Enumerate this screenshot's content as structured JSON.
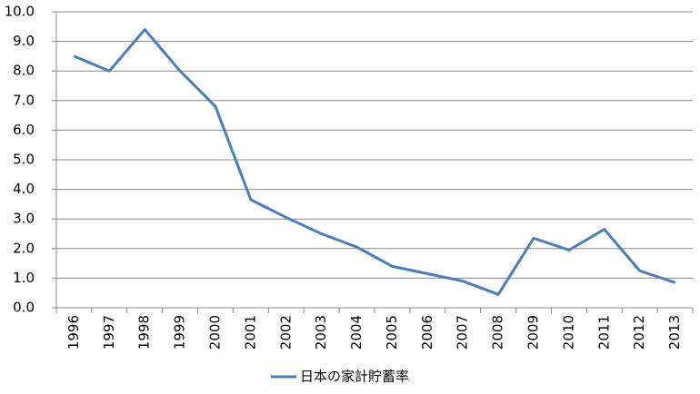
{
  "chart_data": {
    "type": "line",
    "categories": [
      "1996",
      "1997",
      "1998",
      "1999",
      "2000",
      "2001",
      "2002",
      "2003",
      "2004",
      "2005",
      "2006",
      "2007",
      "2008",
      "2009",
      "2010",
      "2011",
      "2012",
      "2013"
    ],
    "series": [
      {
        "name": "日本の家計貯蓄率",
        "color": "#4a7ebb",
        "values": [
          8.5,
          8.0,
          9.4,
          8.0,
          6.8,
          3.65,
          3.05,
          2.5,
          2.05,
          1.4,
          1.15,
          0.9,
          0.45,
          2.35,
          1.95,
          2.65,
          1.25,
          0.85
        ]
      }
    ],
    "ylim": [
      0,
      10
    ],
    "yticks": [
      {
        "value": 0,
        "label": "0.0"
      },
      {
        "value": 1,
        "label": "1.0"
      },
      {
        "value": 2,
        "label": "2.0"
      },
      {
        "value": 3,
        "label": "3.0"
      },
      {
        "value": 4,
        "label": "4.0"
      },
      {
        "value": 5,
        "label": "5.0"
      },
      {
        "value": 6,
        "label": "6.0"
      },
      {
        "value": 7,
        "label": "7.0"
      },
      {
        "value": 8,
        "label": "8.0"
      },
      {
        "value": 9,
        "label": "9.0"
      },
      {
        "value": 10,
        "label": "10.0"
      }
    ],
    "grid": true,
    "legend": "bottom"
  }
}
